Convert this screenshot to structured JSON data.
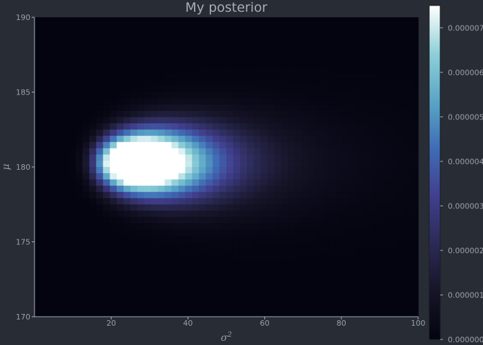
{
  "chart_data": {
    "type": "heatmap",
    "title": "My posterior",
    "xlabel": "σ",
    "xlabel_sup": "2",
    "ylabel": "μ",
    "xlim": [
      0,
      100
    ],
    "ylim": [
      170,
      190
    ],
    "xticks": [
      20,
      40,
      60,
      80,
      100
    ],
    "yticks": [
      170,
      175,
      180,
      185,
      190
    ],
    "colorbar": {
      "range": [
        0,
        7.5e-06
      ],
      "tick_values": [
        0,
        1e-06,
        2e-06,
        3e-06,
        4e-06,
        5e-06,
        6e-06,
        7e-06
      ],
      "tick_labels": [
        "0.000000",
        "0.000001",
        "0.000002",
        "0.000003",
        "0.000004",
        "0.000005",
        "0.000006",
        "0.000007"
      ]
    },
    "peak": {
      "x": 19,
      "y": 180.3,
      "value": 7.5e-06
    },
    "colormap": [
      "#040410",
      "#161427",
      "#2b2a55",
      "#413f8e",
      "#3f6cb6",
      "#5aa6c6",
      "#8fd0d8",
      "#ffffff"
    ]
  }
}
